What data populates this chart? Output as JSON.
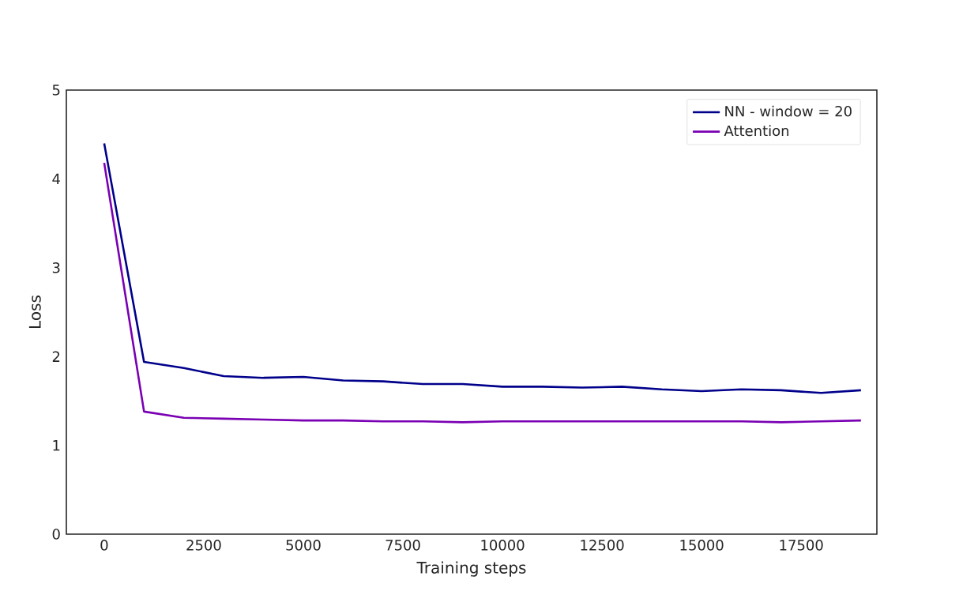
{
  "chart_data": {
    "type": "line",
    "xlabel": "Training steps",
    "ylabel": "Loss",
    "x": [
      0,
      1000,
      2000,
      3000,
      4000,
      5000,
      6000,
      7000,
      8000,
      9000,
      10000,
      11000,
      12000,
      13000,
      14000,
      15000,
      16000,
      17000,
      18000,
      19000
    ],
    "series": [
      {
        "name": "NN - window = 20",
        "color": "#00008b",
        "values": [
          4.4,
          1.94,
          1.87,
          1.78,
          1.76,
          1.77,
          1.73,
          1.72,
          1.69,
          1.69,
          1.66,
          1.66,
          1.65,
          1.66,
          1.63,
          1.61,
          1.63,
          1.62,
          1.59,
          1.62
        ]
      },
      {
        "name": "Attention",
        "color": "#7a00b3",
        "values": [
          4.18,
          1.38,
          1.31,
          1.3,
          1.29,
          1.28,
          1.28,
          1.27,
          1.27,
          1.26,
          1.27,
          1.27,
          1.27,
          1.27,
          1.27,
          1.27,
          1.27,
          1.26,
          1.27,
          1.28
        ]
      }
    ],
    "xlim": [
      -950,
      19400
    ],
    "ylim": [
      0,
      5
    ],
    "xticks": [
      0,
      2500,
      5000,
      7500,
      10000,
      12500,
      15000,
      17500
    ],
    "yticks": [
      0,
      1,
      2,
      3,
      4,
      5
    ],
    "legend": "top right"
  }
}
